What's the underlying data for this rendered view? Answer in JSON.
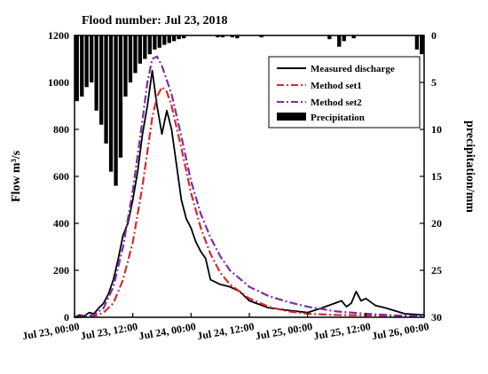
{
  "chart_data": {
    "type": "line",
    "title": "Flood number: Jul 23, 2018",
    "ylabel": "Flow m³/s",
    "y2label": "precipitation/mm",
    "ylim": [
      0,
      1200
    ],
    "y2lim": [
      0,
      30
    ],
    "y2_inverted": true,
    "xlim": [
      "2018-07-23 00:00",
      "2018-07-26 00:00"
    ],
    "x_ticks": [
      "Jul 23, 00:00",
      "Jul 23, 12:00",
      "Jul 24, 00:00",
      "Jul 24, 12:00",
      "Jul 25, 00:00",
      "Jul 25, 12:00",
      "Jul 26, 00:00"
    ],
    "y_ticks": [
      "0",
      "200",
      "400",
      "600",
      "800",
      "1000",
      "1200"
    ],
    "y2_ticks": [
      "0",
      "5",
      "10",
      "15",
      "20",
      "25",
      "30"
    ],
    "grid": false,
    "legend_position": "top-right",
    "series": [
      {
        "name": "Measured discharge",
        "color": "#000000",
        "style": "solid",
        "x": [
          "2018-07-23 00:00",
          "2018-07-23 01:00",
          "2018-07-23 02:00",
          "2018-07-23 03:00",
          "2018-07-23 04:00",
          "2018-07-23 05:00",
          "2018-07-23 06:00",
          "2018-07-23 07:00",
          "2018-07-23 08:00",
          "2018-07-23 09:00",
          "2018-07-23 10:00",
          "2018-07-23 11:00",
          "2018-07-23 12:00",
          "2018-07-23 13:00",
          "2018-07-23 14:00",
          "2018-07-23 15:00",
          "2018-07-23 16:00",
          "2018-07-23 17:00",
          "2018-07-23 18:00",
          "2018-07-23 19:00",
          "2018-07-23 20:00",
          "2018-07-23 21:00",
          "2018-07-23 22:00",
          "2018-07-23 23:00",
          "2018-07-24 00:00",
          "2018-07-24 01:00",
          "2018-07-24 02:00",
          "2018-07-24 03:00",
          "2018-07-24 04:00",
          "2018-07-24 06:00",
          "2018-07-24 08:00",
          "2018-07-24 10:00",
          "2018-07-24 12:00",
          "2018-07-24 16:00",
          "2018-07-24 20:00",
          "2018-07-25 00:00",
          "2018-07-25 03:00",
          "2018-07-25 05:00",
          "2018-07-25 07:00",
          "2018-07-25 08:00",
          "2018-07-25 09:00",
          "2018-07-25 10:00",
          "2018-07-25 11:00",
          "2018-07-25 12:00",
          "2018-07-25 14:00",
          "2018-07-25 16:00",
          "2018-07-25 20:00",
          "2018-07-26 00:00"
        ],
        "y": [
          0,
          10,
          5,
          20,
          15,
          40,
          60,
          100,
          160,
          250,
          350,
          400,
          500,
          620,
          780,
          900,
          1050,
          900,
          780,
          880,
          800,
          650,
          500,
          420,
          380,
          320,
          280,
          250,
          160,
          140,
          130,
          110,
          70,
          40,
          30,
          20,
          40,
          55,
          70,
          45,
          60,
          110,
          70,
          80,
          50,
          40,
          15,
          10
        ]
      },
      {
        "name": "Method set1",
        "color": "#d42b2b",
        "style": "dashdot",
        "x": [
          "2018-07-23 00:00",
          "2018-07-23 04:00",
          "2018-07-23 06:00",
          "2018-07-23 08:00",
          "2018-07-23 10:00",
          "2018-07-23 12:00",
          "2018-07-23 14:00",
          "2018-07-23 16:00",
          "2018-07-23 17:00",
          "2018-07-23 18:00",
          "2018-07-23 19:00",
          "2018-07-23 20:00",
          "2018-07-23 22:00",
          "2018-07-24 00:00",
          "2018-07-24 02:00",
          "2018-07-24 04:00",
          "2018-07-24 06:00",
          "2018-07-24 08:00",
          "2018-07-24 12:00",
          "2018-07-24 16:00",
          "2018-07-24 20:00",
          "2018-07-25 00:00",
          "2018-07-25 06:00",
          "2018-07-25 12:00",
          "2018-07-25 18:00",
          "2018-07-26 00:00"
        ],
        "y": [
          0,
          5,
          20,
          60,
          160,
          320,
          560,
          850,
          940,
          980,
          960,
          900,
          720,
          530,
          380,
          270,
          190,
          140,
          80,
          45,
          25,
          15,
          10,
          8,
          6,
          5
        ]
      },
      {
        "name": "Method set2",
        "color": "#7b2fa8",
        "style": "dashdot",
        "x": [
          "2018-07-23 00:00",
          "2018-07-23 04:00",
          "2018-07-23 06:00",
          "2018-07-23 08:00",
          "2018-07-23 10:00",
          "2018-07-23 12:00",
          "2018-07-23 14:00",
          "2018-07-23 15:00",
          "2018-07-23 16:00",
          "2018-07-23 17:00",
          "2018-07-23 18:00",
          "2018-07-23 20:00",
          "2018-07-23 22:00",
          "2018-07-24 00:00",
          "2018-07-24 02:00",
          "2018-07-24 04:00",
          "2018-07-24 06:00",
          "2018-07-24 08:00",
          "2018-07-24 12:00",
          "2018-07-24 16:00",
          "2018-07-24 20:00",
          "2018-07-25 00:00",
          "2018-07-25 06:00",
          "2018-07-25 12:00",
          "2018-07-25 18:00",
          "2018-07-26 00:00"
        ],
        "y": [
          0,
          10,
          40,
          130,
          300,
          540,
          840,
          1000,
          1100,
          1110,
          1070,
          950,
          770,
          580,
          440,
          340,
          260,
          200,
          130,
          90,
          65,
          45,
          25,
          15,
          8,
          5
        ]
      }
    ],
    "precipitation": {
      "name": "Precipitation",
      "color": "#000000",
      "unit": "mm",
      "x": [
        "2018-07-23 00:00",
        "2018-07-23 01:00",
        "2018-07-23 02:00",
        "2018-07-23 03:00",
        "2018-07-23 04:00",
        "2018-07-23 05:00",
        "2018-07-23 06:00",
        "2018-07-23 07:00",
        "2018-07-23 08:00",
        "2018-07-23 09:00",
        "2018-07-23 10:00",
        "2018-07-23 11:00",
        "2018-07-23 12:00",
        "2018-07-23 13:00",
        "2018-07-23 14:00",
        "2018-07-23 15:00",
        "2018-07-23 16:00",
        "2018-07-23 17:00",
        "2018-07-23 18:00",
        "2018-07-23 19:00",
        "2018-07-23 20:00",
        "2018-07-23 21:00",
        "2018-07-23 22:00",
        "2018-07-24 05:00",
        "2018-07-24 06:00",
        "2018-07-24 08:00",
        "2018-07-24 09:00",
        "2018-07-24 14:00",
        "2018-07-25 04:00",
        "2018-07-25 06:00",
        "2018-07-25 07:00",
        "2018-07-25 09:00",
        "2018-07-25 22:00",
        "2018-07-25 23:00"
      ],
      "values": [
        7,
        6.5,
        5.5,
        5,
        8,
        9.5,
        11.5,
        14.5,
        16,
        13,
        6.5,
        5,
        4,
        3,
        2.5,
        2,
        1.5,
        1.3,
        1,
        0.8,
        0.6,
        0.4,
        0.3,
        0.2,
        0.2,
        0.2,
        0.3,
        0.2,
        0.4,
        1.2,
        0.6,
        0.3,
        1.5,
        2
      ]
    }
  }
}
